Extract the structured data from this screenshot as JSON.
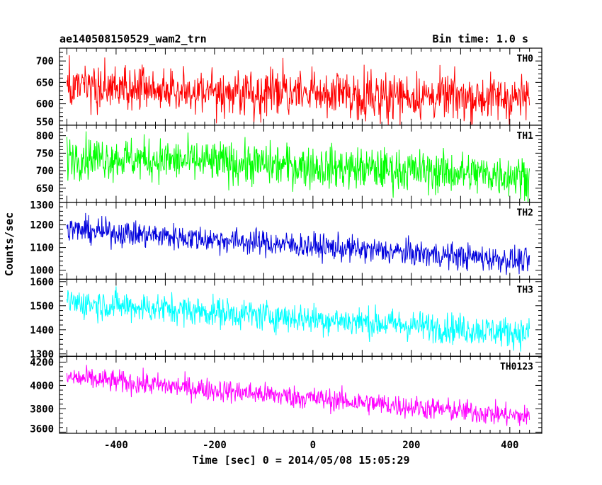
{
  "chart_data": {
    "type": "line",
    "title": "ae140508150529_wam2_trn",
    "bin_time_label": "Bin time: 1.0 s",
    "xlabel": "Time [sec] 0 = 2014/05/08 15:05:29",
    "ylabel": "Counts/sec",
    "xlim": [
      -515,
      465
    ],
    "x_ticks": [
      -400,
      -200,
      0,
      200,
      400
    ],
    "x_range": [
      -500,
      440
    ],
    "grid": false,
    "panels": [
      {
        "name": "TH0",
        "color": "#ff0000",
        "ylim": [
          550,
          730
        ],
        "y_ticks": [
          550,
          600,
          650,
          700
        ],
        "trend": {
          "start": 637,
          "end": 612
        },
        "spread": 36,
        "range": [
          550,
          730
        ]
      },
      {
        "name": "TH1",
        "color": "#00ff00",
        "ylim": [
          610,
          830
        ],
        "y_ticks": [
          650,
          700,
          750,
          800
        ],
        "trend": {
          "start": 742,
          "end": 685
        },
        "spread": 40,
        "range": [
          610,
          830
        ]
      },
      {
        "name": "TH2",
        "color": "#0000dd",
        "ylim": [
          960,
          1300
        ],
        "y_ticks": [
          1000,
          1100,
          1200,
          1300
        ],
        "trend": {
          "start": 1180,
          "end": 1040
        },
        "spread": 38,
        "range": [
          960,
          1300
        ]
      },
      {
        "name": "TH3",
        "color": "#00ffff",
        "ylim": [
          1290,
          1610
        ],
        "y_ticks": [
          1300,
          1400,
          1500,
          1600
        ],
        "trend": {
          "start": 1515,
          "end": 1385
        },
        "spread": 42,
        "range": [
          1290,
          1610
        ]
      },
      {
        "name": "TH0123",
        "color": "#ff00ff",
        "ylim": [
          3590,
          4250
        ],
        "y_ticks": [
          3600,
          3800,
          4000,
          4200
        ],
        "trend": {
          "start": 4070,
          "end": 3730
        },
        "spread": 65,
        "range": [
          3590,
          4250
        ]
      }
    ]
  }
}
